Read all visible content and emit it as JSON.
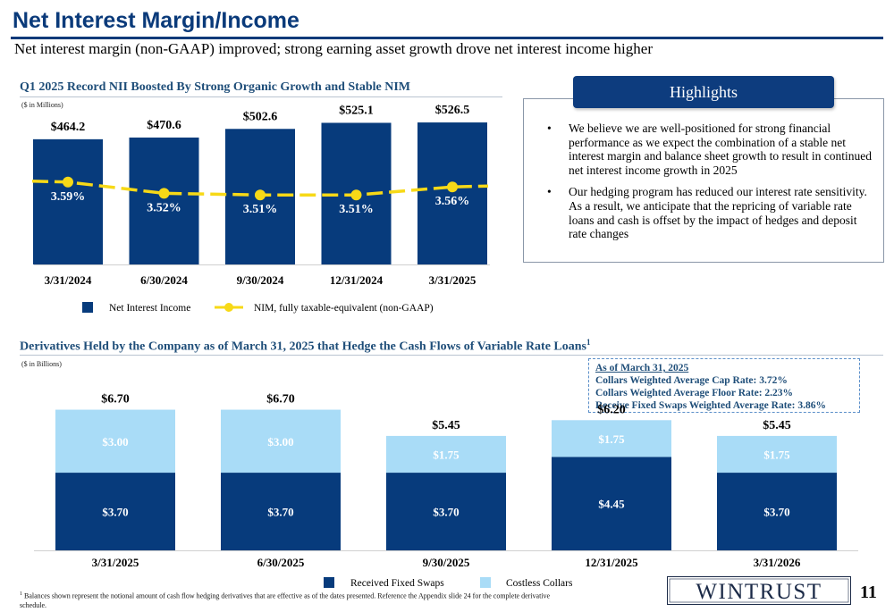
{
  "header": {
    "title": "Net Interest Margin/Income",
    "subtitle": "Net interest margin (non-GAAP) improved; strong earning asset growth drove net interest income higher"
  },
  "colors": {
    "navy": "#073b7c",
    "light_blue": "#a9dcf7",
    "yellow": "#f7d917",
    "heading_blue": "#1f4e79"
  },
  "nii_section": {
    "title": "Q1 2025 Record NII Boosted By Strong Organic Growth and Stable NIM",
    "unit": "($ in Millions)"
  },
  "derivatives_section": {
    "title": "Derivatives Held by the Company as of March 31, 2025 that Hedge the Cash Flows of Variable Rate Loans",
    "title_sup": "1",
    "unit": "($ in Billions)"
  },
  "chart_data": [
    {
      "type": "bar",
      "title": "Q1 2025 Record NII Boosted By Strong Organic Growth and Stable NIM",
      "categories": [
        "3/31/2024",
        "6/30/2024",
        "9/30/2024",
        "12/31/2024",
        "3/31/2025"
      ],
      "series": [
        {
          "name": "Net Interest Income",
          "type": "bar",
          "values": [
            464.2,
            470.6,
            502.6,
            525.1,
            526.5
          ],
          "labels": [
            "$464.2",
            "$470.6",
            "$502.6",
            "$525.1",
            "$526.5"
          ]
        },
        {
          "name": "NIM, fully taxable-equivalent (non-GAAP)",
          "type": "line",
          "values": [
            3.59,
            3.52,
            3.51,
            3.51,
            3.56
          ],
          "labels": [
            "3.59%",
            "3.52%",
            "3.51%",
            "3.51%",
            "3.56%"
          ]
        }
      ],
      "legend": "bottom"
    },
    {
      "type": "bar",
      "stacked": true,
      "title": "Derivatives Held by the Company as of March 31, 2025 that Hedge the Cash Flows of Variable Rate Loans",
      "categories": [
        "3/31/2025",
        "6/30/2025",
        "9/30/2025",
        "12/31/2025",
        "3/31/2026"
      ],
      "totals": [
        6.7,
        6.7,
        5.45,
        6.2,
        5.45
      ],
      "total_labels": [
        "$6.70",
        "$6.70",
        "$5.45",
        "$6.20",
        "$5.45"
      ],
      "series": [
        {
          "name": "Received Fixed Swaps",
          "values": [
            3.7,
            3.7,
            3.7,
            4.45,
            3.7
          ],
          "labels": [
            "$3.70",
            "$3.70",
            "$3.70",
            "$4.45",
            "$3.70"
          ]
        },
        {
          "name": "Costless Collars",
          "values": [
            3.0,
            3.0,
            1.75,
            1.75,
            1.75
          ],
          "labels": [
            "$3.00",
            "$3.00",
            "$1.75",
            "$1.75",
            "$1.75"
          ]
        }
      ],
      "legend": "bottom"
    }
  ],
  "highlights": {
    "header": "Highlights",
    "bullet_glyph": "•",
    "bullets": [
      "We believe we are well-positioned for strong financial performance as we expect the combination of a stable net interest margin and balance sheet growth to result in continued net interest income growth in 2025",
      "Our hedging program has reduced our interest rate sensitivity. As a result, we anticipate that the repricing of variable rate loans and cash is offset by the impact of hedges and deposit rate changes"
    ]
  },
  "rates_note": {
    "heading": "As of March 31, 2025",
    "lines": [
      "Collars Weighted Average Cap Rate: 3.72%",
      "Collars Weighted Average Floor Rate: 2.23%",
      "Receive Fixed Swaps Weighted Average Rate: 3.86%"
    ]
  },
  "footnote": {
    "marker": "1",
    "text": "Balances shown represent the notional amount of cash flow hedging derivatives that are effective as of the dates presented. Reference the Appendix slide 24 for the complete derivative schedule."
  },
  "logo": {
    "text": "WINTRUST"
  },
  "page_number": "11"
}
